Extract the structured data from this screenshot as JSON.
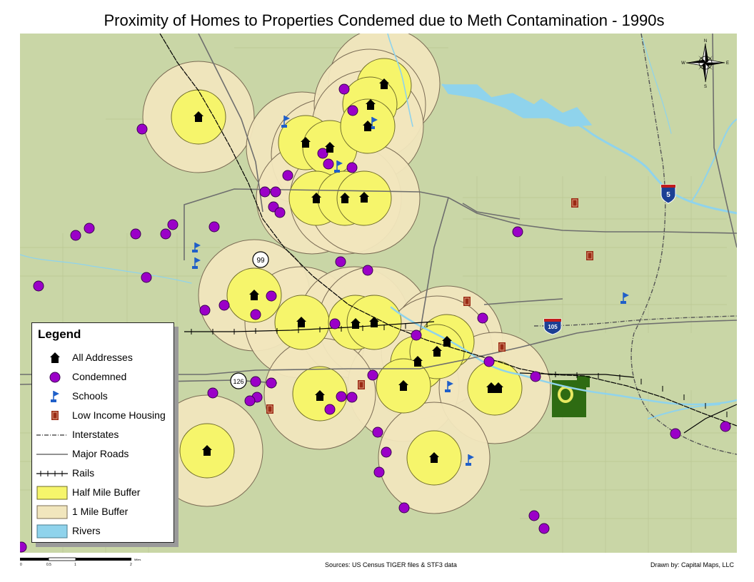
{
  "title": "Proximity of Homes to Properties Condemed due to Meth Contamination  - 1990s",
  "legend": {
    "title": "Legend",
    "items": [
      {
        "label": "All Addresses",
        "symbol": "house-icon"
      },
      {
        "label": "Condemned",
        "symbol": "purple-circle"
      },
      {
        "label": "Schools",
        "symbol": "flag-icon"
      },
      {
        "label": "Low Income Housing",
        "symbol": "building-icon"
      },
      {
        "label": "Interstates",
        "symbol": "interstate-line"
      },
      {
        "label": "Major Roads",
        "symbol": "road-line"
      },
      {
        "label": "Rails",
        "symbol": "rail-line"
      },
      {
        "label": "Half Mile Buffer",
        "symbol": "yellow-box"
      },
      {
        "label": "1 Mile Buffer",
        "symbol": "tan-box"
      },
      {
        "label": "Rivers",
        "symbol": "blue-box"
      }
    ]
  },
  "route_shields": [
    {
      "label": "99",
      "type": "state"
    },
    {
      "label": "126",
      "type": "state"
    },
    {
      "label": "5",
      "type": "interstate"
    },
    {
      "label": "105",
      "type": "interstate"
    }
  ],
  "scale": {
    "ticks": [
      "0",
      "0.5",
      "1",
      "2"
    ],
    "unit": "Miles"
  },
  "compass": {
    "n": "N",
    "s": "S",
    "e": "E",
    "w": "W"
  },
  "sources": "Sources: US Census TIGER files & STF3 data",
  "credit": "Drawn by: Capital Maps, LLC",
  "colors": {
    "background": "#c9d6a6",
    "half_mile_buffer": "#f6f56b",
    "one_mile_buffer": "#f1e6bd",
    "condemned": "#9b00c8",
    "river": "#8fd3ec",
    "school_flag": "#1f5fc9",
    "low_income": "#9a2a14",
    "campus": "#2e6b12",
    "interstate_shield": "#1c3f94"
  }
}
